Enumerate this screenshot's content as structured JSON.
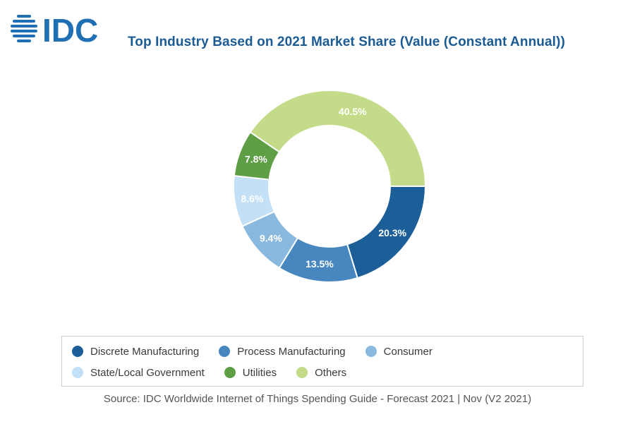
{
  "header": {
    "logo_text": "IDC",
    "title": "Top Industry Based on 2021 Market Share (Value (Constant Annual))"
  },
  "colors": {
    "brand": "#1b5b94",
    "logo": "#1f6fb5"
  },
  "chart_data": {
    "type": "pie",
    "variant": "donut",
    "title": "Top Industry Based on 2021 Market Share (Value (Constant Annual))",
    "unit": "%",
    "legend_position": "bottom",
    "slices": [
      {
        "label": "Discrete Manufacturing",
        "value": 20.3,
        "display": "20.3%",
        "color": "#1c5e98"
      },
      {
        "label": "Process Manufacturing",
        "value": 13.5,
        "display": "13.5%",
        "color": "#4786bf"
      },
      {
        "label": "Consumer",
        "value": 9.4,
        "display": "9.4%",
        "color": "#8ab9e0"
      },
      {
        "label": "State/Local Government",
        "value": 8.6,
        "display": "8.6%",
        "color": "#c3e0f7"
      },
      {
        "label": "Utilities",
        "value": 7.8,
        "display": "7.8%",
        "color": "#5e9e44"
      },
      {
        "label": "Others",
        "value": 40.5,
        "display": "40.5%",
        "color": "#c4dc8a"
      }
    ]
  },
  "legend": {
    "rows": [
      [
        "Discrete Manufacturing",
        "Process Manufacturing",
        "Consumer"
      ],
      [
        "State/Local Government",
        "Utilities",
        "Others"
      ]
    ]
  },
  "source": "Source: IDC Worldwide Internet of Things Spending Guide - Forecast 2021 | Nov (V2 2021)"
}
